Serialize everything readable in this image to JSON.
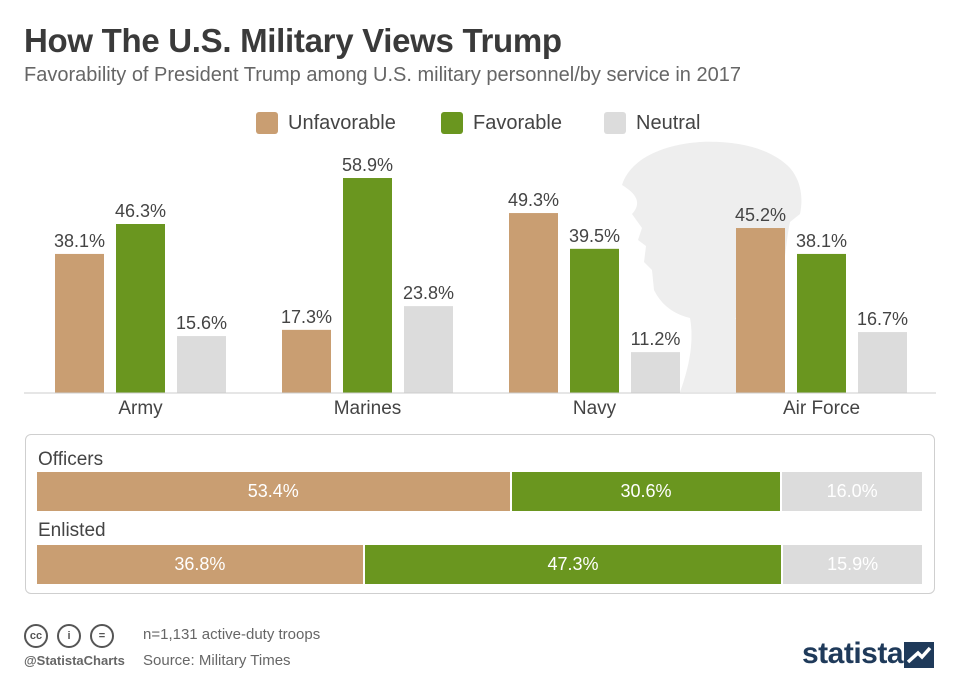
{
  "header": {
    "title": "How The U.S. Military Views Trump",
    "subtitle": "Favorability of President Trump among U.S. military personnel/by service in 2017"
  },
  "colors": {
    "unfavorable": "#c99e72",
    "favorable": "#6a961f",
    "neutral": "#dcdcdc",
    "axis": "#cccccc",
    "label": "#444444"
  },
  "legend": [
    {
      "name": "Unfavorable",
      "color": "#c99e72"
    },
    {
      "name": "Favorable",
      "color": "#6a961f"
    },
    {
      "name": "Neutral",
      "color": "#dcdcdc"
    }
  ],
  "chart_data": [
    {
      "type": "bar",
      "title": "",
      "xlabel": "",
      "ylabel": "",
      "ylim": [
        0,
        60
      ],
      "grid": false,
      "legend_position": "top",
      "categories": [
        "Army",
        "Marines",
        "Navy",
        "Air Force"
      ],
      "series": [
        {
          "name": "Unfavorable",
          "values": [
            38.1,
            17.3,
            49.3,
            45.2
          ],
          "labels": [
            "38.1%",
            "17.3%",
            "49.3%",
            "45.2%"
          ]
        },
        {
          "name": "Favorable",
          "values": [
            46.3,
            58.9,
            39.5,
            38.1
          ],
          "labels": [
            "46.3%",
            "58.9%",
            "39.5%",
            "38.1%"
          ]
        },
        {
          "name": "Neutral",
          "values": [
            15.6,
            23.8,
            11.2,
            16.7
          ],
          "labels": [
            "15.6%",
            "23.8%",
            "11.2%",
            "16.7%"
          ]
        }
      ]
    },
    {
      "type": "bar",
      "orientation": "horizontal",
      "stacked": true,
      "categories": [
        "Officers",
        "Enlisted"
      ],
      "series": [
        {
          "name": "Unfavorable",
          "values": [
            53.4,
            36.8
          ],
          "labels": [
            "53.4%",
            "36.8%"
          ]
        },
        {
          "name": "Favorable",
          "values": [
            30.6,
            47.3
          ],
          "labels": [
            "30.6%",
            "47.3%"
          ]
        },
        {
          "name": "Neutral",
          "values": [
            16.0,
            15.9
          ],
          "labels": [
            "16.0%",
            "15.9%"
          ]
        }
      ]
    }
  ],
  "footer": {
    "icons": [
      {
        "name": "cc-icon",
        "text": "cc"
      },
      {
        "name": "by-icon",
        "text": "i"
      },
      {
        "name": "nd-icon",
        "text": "="
      }
    ],
    "handle": "@StatistaCharts",
    "note": "n=1,131 active-duty troops",
    "source": "Source: Military Times",
    "brand": "statista"
  }
}
